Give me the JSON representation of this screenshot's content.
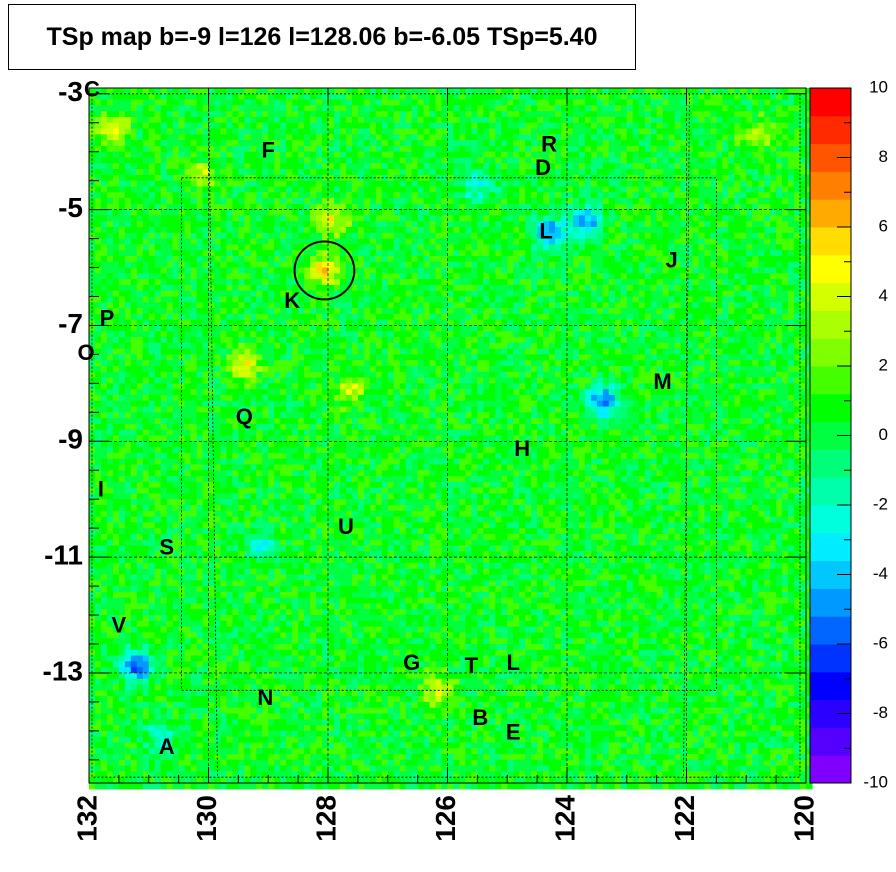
{
  "chart_data": {
    "type": "heatmap",
    "title": "TSp map b=-9 l=126 l=128.06 b=-6.05 TSp=5.40",
    "xlim": [
      132,
      120
    ],
    "ylim": [
      -14.9,
      -2.9
    ],
    "x_ticks": [
      132,
      130,
      128,
      126,
      124,
      122,
      120
    ],
    "y_ticks": [
      -3,
      -5,
      -7,
      -9,
      -11,
      -13
    ],
    "colorbar": {
      "range": [
        -10,
        10
      ],
      "ticks": [
        10,
        8,
        6,
        4,
        2,
        0,
        -2,
        -4,
        -6,
        -8,
        -10
      ],
      "colors": [
        "#7f00ff",
        "#5500ff",
        "#2b00ff",
        "#0000ff",
        "#0033ff",
        "#0066ff",
        "#0099ff",
        "#00c8ff",
        "#00eeff",
        "#00ffdd",
        "#00ffaa",
        "#00ff78",
        "#00ff40",
        "#00ff00",
        "#44ff00",
        "#7fff00",
        "#aaff00",
        "#d4ff00",
        "#ffff00",
        "#ffdd00",
        "#ffaa00",
        "#ff8000",
        "#ff5500",
        "#ff2a00",
        "#ff0000"
      ]
    },
    "background_level": 0.5,
    "hotspots": [
      {
        "l": 128.06,
        "b": -6.05,
        "value": 5.4
      },
      {
        "l": 131.6,
        "b": -3.6,
        "value": 4.2
      },
      {
        "l": 129.4,
        "b": -7.7,
        "value": 4.0
      },
      {
        "l": 127.9,
        "b": -5.2,
        "value": 3.8
      },
      {
        "l": 126.2,
        "b": -13.3,
        "value": 3.5
      },
      {
        "l": 127.6,
        "b": -8.1,
        "value": 3.0
      },
      {
        "l": 130.1,
        "b": -4.4,
        "value": 3.0
      },
      {
        "l": 120.8,
        "b": -3.7,
        "value": 2.8
      },
      {
        "l": 131.2,
        "b": -12.9,
        "value": -6.5
      },
      {
        "l": 124.3,
        "b": -5.4,
        "value": -6.0
      },
      {
        "l": 123.7,
        "b": -5.2,
        "value": -5.5
      },
      {
        "l": 123.4,
        "b": -8.3,
        "value": -6.0
      },
      {
        "l": 125.5,
        "b": -4.6,
        "value": -3.0
      },
      {
        "l": 130.8,
        "b": -14.1,
        "value": -2.8
      },
      {
        "l": 129.1,
        "b": -10.8,
        "value": -3.0
      }
    ],
    "tsp_circle": {
      "l": 128.06,
      "b": -6.05,
      "radius_deg": 0.5
    },
    "source_labels": [
      {
        "label": "C",
        "l": 131.95,
        "b": -2.95
      },
      {
        "label": "F",
        "l": 129.0,
        "b": -4.0
      },
      {
        "label": "R",
        "l": 124.3,
        "b": -3.9
      },
      {
        "label": "D",
        "l": 124.4,
        "b": -4.3
      },
      {
        "label": "L",
        "l": 124.35,
        "b": -5.4
      },
      {
        "label": "J",
        "l": 122.25,
        "b": -5.9
      },
      {
        "label": "K",
        "l": 128.6,
        "b": -6.6
      },
      {
        "label": "P",
        "l": 131.7,
        "b": -6.9
      },
      {
        "label": "O",
        "l": 132.05,
        "b": -7.5
      },
      {
        "label": "M",
        "l": 122.4,
        "b": -8.0
      },
      {
        "label": "Q",
        "l": 129.4,
        "b": -8.6
      },
      {
        "label": "H",
        "l": 124.75,
        "b": -9.15
      },
      {
        "label": "I",
        "l": 131.8,
        "b": -9.85
      },
      {
        "label": "U",
        "l": 127.7,
        "b": -10.5
      },
      {
        "label": "S",
        "l": 130.7,
        "b": -10.85
      },
      {
        "label": "V",
        "l": 131.5,
        "b": -12.2
      },
      {
        "label": "G",
        "l": 126.6,
        "b": -12.85
      },
      {
        "label": "T",
        "l": 125.6,
        "b": -12.9
      },
      {
        "label": "L",
        "l": 124.9,
        "b": -12.85
      },
      {
        "label": "N",
        "l": 129.05,
        "b": -13.45
      },
      {
        "label": "B",
        "l": 125.45,
        "b": -13.8
      },
      {
        "label": "E",
        "l": 124.9,
        "b": -14.05
      },
      {
        "label": "A",
        "l": 130.7,
        "b": -14.3
      }
    ],
    "grid": {
      "dashed_verticals_l": [
        130,
        128,
        126,
        124,
        122
      ],
      "dashed_horizontals_b": [
        -5,
        -7,
        -9,
        -11,
        -13
      ]
    },
    "region_outlines": [
      [
        [
          130.45,
          -4.45
        ],
        [
          121.5,
          -4.45
        ],
        [
          121.5,
          -13.3
        ],
        [
          130.45,
          -13.3
        ],
        [
          130.45,
          -4.45
        ]
      ],
      [
        [
          131.95,
          -3.0
        ],
        [
          120.1,
          -3.0
        ],
        [
          120.1,
          -14.8
        ],
        [
          131.95,
          -14.8
        ],
        [
          131.95,
          -3.0
        ]
      ],
      [
        [
          130.0,
          -3.0
        ],
        [
          129.85,
          -14.8
        ]
      ],
      [
        [
          121.95,
          -3.0
        ],
        [
          122.05,
          -14.8
        ]
      ]
    ]
  }
}
